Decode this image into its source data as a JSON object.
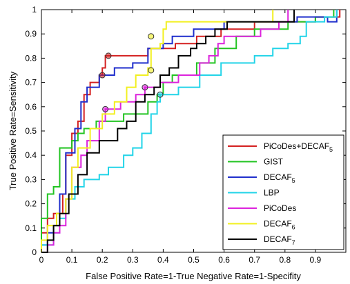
{
  "chart_data": {
    "type": "line",
    "title": "",
    "xlabel": "False Positive Rate=1-True Negative Rate=1-Specifity",
    "ylabel": "True Positive Rate=Sensitivity",
    "xlim": [
      0,
      1
    ],
    "ylim": [
      0,
      1
    ],
    "x_ticks": [
      "0",
      "0.1",
      "0.2",
      "0.3",
      "0.4",
      "0.5",
      "0.6",
      "0.7",
      "0.8",
      "0.9"
    ],
    "y_ticks": [
      "0",
      "0.1",
      "0.2",
      "0.3",
      "0.4",
      "0.5",
      "0.6",
      "0.7",
      "0.8",
      "0.9",
      "1"
    ],
    "x_tick_values": [
      0,
      0.1,
      0.2,
      0.3,
      0.4,
      0.5,
      0.6,
      0.7,
      0.8,
      0.9
    ],
    "y_tick_values": [
      0,
      0.1,
      0.2,
      0.3,
      0.4,
      0.5,
      0.6,
      0.7,
      0.8,
      0.9,
      1
    ],
    "grid": false,
    "legend_position": "bottom-right",
    "series": [
      {
        "name": "PiCoDes+DECAF",
        "name_sub": "5",
        "color": "#d42020",
        "points": [
          [
            0,
            0
          ],
          [
            0,
            0.08
          ],
          [
            0.02,
            0.08
          ],
          [
            0.02,
            0.14
          ],
          [
            0.04,
            0.14
          ],
          [
            0.04,
            0.16
          ],
          [
            0.07,
            0.16
          ],
          [
            0.07,
            0.24
          ],
          [
            0.08,
            0.24
          ],
          [
            0.08,
            0.4
          ],
          [
            0.1,
            0.4
          ],
          [
            0.1,
            0.49
          ],
          [
            0.12,
            0.49
          ],
          [
            0.12,
            0.54
          ],
          [
            0.14,
            0.54
          ],
          [
            0.14,
            0.65
          ],
          [
            0.16,
            0.65
          ],
          [
            0.16,
            0.7
          ],
          [
            0.19,
            0.7
          ],
          [
            0.19,
            0.73
          ],
          [
            0.2,
            0.73
          ],
          [
            0.2,
            0.76
          ],
          [
            0.21,
            0.76
          ],
          [
            0.21,
            0.81
          ],
          [
            0.35,
            0.81
          ],
          [
            0.35,
            0.84
          ],
          [
            0.44,
            0.84
          ],
          [
            0.44,
            0.86
          ],
          [
            0.51,
            0.86
          ],
          [
            0.51,
            0.89
          ],
          [
            0.59,
            0.89
          ],
          [
            0.59,
            0.92
          ],
          [
            0.7,
            0.92
          ],
          [
            0.7,
            0.95
          ],
          [
            0.9,
            0.95
          ],
          [
            0.9,
            0.97
          ],
          [
            0.98,
            0.97
          ],
          [
            0.98,
            1
          ]
        ],
        "markers": [
          [
            0.2,
            0.73
          ],
          [
            0.22,
            0.81
          ]
        ]
      },
      {
        "name": "GIST",
        "color": "#22c422",
        "points": [
          [
            0,
            0
          ],
          [
            0,
            0.14
          ],
          [
            0.02,
            0.14
          ],
          [
            0.02,
            0.24
          ],
          [
            0.04,
            0.24
          ],
          [
            0.04,
            0.27
          ],
          [
            0.06,
            0.27
          ],
          [
            0.06,
            0.43
          ],
          [
            0.1,
            0.43
          ],
          [
            0.1,
            0.46
          ],
          [
            0.12,
            0.46
          ],
          [
            0.12,
            0.49
          ],
          [
            0.14,
            0.49
          ],
          [
            0.14,
            0.51
          ],
          [
            0.18,
            0.51
          ],
          [
            0.18,
            0.54
          ],
          [
            0.27,
            0.54
          ],
          [
            0.27,
            0.57
          ],
          [
            0.35,
            0.57
          ],
          [
            0.35,
            0.62
          ],
          [
            0.38,
            0.62
          ],
          [
            0.38,
            0.65
          ],
          [
            0.4,
            0.65
          ],
          [
            0.4,
            0.7
          ],
          [
            0.43,
            0.7
          ],
          [
            0.43,
            0.73
          ],
          [
            0.51,
            0.73
          ],
          [
            0.51,
            0.78
          ],
          [
            0.57,
            0.78
          ],
          [
            0.57,
            0.84
          ],
          [
            0.64,
            0.84
          ],
          [
            0.64,
            0.89
          ],
          [
            0.7,
            0.89
          ],
          [
            0.7,
            0.92
          ],
          [
            0.81,
            0.92
          ],
          [
            0.81,
            0.95
          ],
          [
            0.9,
            0.95
          ],
          [
            0.9,
            0.97
          ],
          [
            0.96,
            0.97
          ],
          [
            0.96,
            1
          ]
        ],
        "markers": []
      },
      {
        "name": "DECAF",
        "name_sub": "5",
        "color": "#1f2ecc",
        "points": [
          [
            0,
            0
          ],
          [
            0,
            0.03
          ],
          [
            0.02,
            0.03
          ],
          [
            0.02,
            0.08
          ],
          [
            0.04,
            0.08
          ],
          [
            0.04,
            0.11
          ],
          [
            0.06,
            0.11
          ],
          [
            0.06,
            0.24
          ],
          [
            0.08,
            0.24
          ],
          [
            0.08,
            0.41
          ],
          [
            0.11,
            0.41
          ],
          [
            0.11,
            0.51
          ],
          [
            0.13,
            0.51
          ],
          [
            0.13,
            0.62
          ],
          [
            0.15,
            0.62
          ],
          [
            0.15,
            0.68
          ],
          [
            0.19,
            0.68
          ],
          [
            0.19,
            0.73
          ],
          [
            0.24,
            0.73
          ],
          [
            0.24,
            0.76
          ],
          [
            0.3,
            0.76
          ],
          [
            0.3,
            0.78
          ],
          [
            0.35,
            0.78
          ],
          [
            0.35,
            0.84
          ],
          [
            0.4,
            0.84
          ],
          [
            0.4,
            0.86
          ],
          [
            0.43,
            0.86
          ],
          [
            0.43,
            0.89
          ],
          [
            0.5,
            0.89
          ],
          [
            0.5,
            0.92
          ],
          [
            0.6,
            0.92
          ],
          [
            0.6,
            0.95
          ],
          [
            0.84,
            0.95
          ],
          [
            0.84,
            0.97
          ],
          [
            0.94,
            0.97
          ],
          [
            0.94,
            0.95
          ],
          [
            0.97,
            0.95
          ],
          [
            0.97,
            1
          ]
        ],
        "markers": []
      },
      {
        "name": "LBP",
        "color": "#22d4e8",
        "points": [
          [
            0,
            0
          ],
          [
            0,
            0.03
          ],
          [
            0.04,
            0.03
          ],
          [
            0.04,
            0.08
          ],
          [
            0.06,
            0.08
          ],
          [
            0.06,
            0.14
          ],
          [
            0.08,
            0.14
          ],
          [
            0.08,
            0.22
          ],
          [
            0.11,
            0.22
          ],
          [
            0.11,
            0.27
          ],
          [
            0.14,
            0.27
          ],
          [
            0.14,
            0.3
          ],
          [
            0.19,
            0.3
          ],
          [
            0.19,
            0.32
          ],
          [
            0.22,
            0.32
          ],
          [
            0.22,
            0.35
          ],
          [
            0.27,
            0.35
          ],
          [
            0.27,
            0.4
          ],
          [
            0.3,
            0.4
          ],
          [
            0.3,
            0.43
          ],
          [
            0.33,
            0.43
          ],
          [
            0.33,
            0.49
          ],
          [
            0.36,
            0.49
          ],
          [
            0.36,
            0.57
          ],
          [
            0.38,
            0.57
          ],
          [
            0.38,
            0.62
          ],
          [
            0.39,
            0.62
          ],
          [
            0.39,
            0.65
          ],
          [
            0.45,
            0.65
          ],
          [
            0.45,
            0.68
          ],
          [
            0.52,
            0.68
          ],
          [
            0.52,
            0.73
          ],
          [
            0.59,
            0.73
          ],
          [
            0.59,
            0.78
          ],
          [
            0.7,
            0.78
          ],
          [
            0.7,
            0.81
          ],
          [
            0.76,
            0.81
          ],
          [
            0.76,
            0.84
          ],
          [
            0.81,
            0.84
          ],
          [
            0.81,
            0.86
          ],
          [
            0.85,
            0.86
          ],
          [
            0.85,
            0.89
          ],
          [
            0.87,
            0.89
          ],
          [
            0.87,
            0.95
          ],
          [
            0.93,
            0.95
          ],
          [
            0.93,
            0.97
          ],
          [
            0.97,
            0.97
          ],
          [
            0.97,
            1
          ]
        ],
        "markers": [
          [
            0.39,
            0.65
          ]
        ]
      },
      {
        "name": "PiCoDes",
        "color": "#dc22dc",
        "points": [
          [
            0,
            0
          ],
          [
            0.02,
            0
          ],
          [
            0.02,
            0.03
          ],
          [
            0.04,
            0.03
          ],
          [
            0.04,
            0.08
          ],
          [
            0.06,
            0.08
          ],
          [
            0.06,
            0.11
          ],
          [
            0.08,
            0.11
          ],
          [
            0.08,
            0.22
          ],
          [
            0.1,
            0.22
          ],
          [
            0.1,
            0.35
          ],
          [
            0.13,
            0.35
          ],
          [
            0.13,
            0.4
          ],
          [
            0.15,
            0.4
          ],
          [
            0.15,
            0.46
          ],
          [
            0.19,
            0.46
          ],
          [
            0.19,
            0.54
          ],
          [
            0.21,
            0.54
          ],
          [
            0.21,
            0.59
          ],
          [
            0.26,
            0.59
          ],
          [
            0.26,
            0.62
          ],
          [
            0.31,
            0.62
          ],
          [
            0.31,
            0.65
          ],
          [
            0.34,
            0.65
          ],
          [
            0.34,
            0.68
          ],
          [
            0.39,
            0.68
          ],
          [
            0.39,
            0.7
          ],
          [
            0.45,
            0.7
          ],
          [
            0.45,
            0.73
          ],
          [
            0.52,
            0.73
          ],
          [
            0.52,
            0.78
          ],
          [
            0.55,
            0.78
          ],
          [
            0.55,
            0.81
          ],
          [
            0.58,
            0.81
          ],
          [
            0.58,
            0.86
          ],
          [
            0.6,
            0.86
          ],
          [
            0.6,
            0.89
          ],
          [
            0.72,
            0.89
          ],
          [
            0.72,
            0.92
          ],
          [
            0.78,
            0.92
          ],
          [
            0.78,
            0.95
          ],
          [
            0.81,
            0.95
          ],
          [
            0.81,
            1
          ]
        ],
        "markers": [
          [
            0.21,
            0.59
          ],
          [
            0.34,
            0.68
          ]
        ]
      },
      {
        "name": "DECAF",
        "name_sub": "6",
        "color": "#f2f020",
        "points": [
          [
            0,
            0
          ],
          [
            0,
            0.05
          ],
          [
            0.02,
            0.05
          ],
          [
            0.02,
            0.11
          ],
          [
            0.05,
            0.11
          ],
          [
            0.05,
            0.16
          ],
          [
            0.08,
            0.16
          ],
          [
            0.08,
            0.22
          ],
          [
            0.1,
            0.22
          ],
          [
            0.1,
            0.35
          ],
          [
            0.12,
            0.35
          ],
          [
            0.12,
            0.43
          ],
          [
            0.16,
            0.43
          ],
          [
            0.16,
            0.51
          ],
          [
            0.2,
            0.51
          ],
          [
            0.2,
            0.57
          ],
          [
            0.24,
            0.57
          ],
          [
            0.24,
            0.62
          ],
          [
            0.28,
            0.62
          ],
          [
            0.28,
            0.68
          ],
          [
            0.31,
            0.68
          ],
          [
            0.31,
            0.73
          ],
          [
            0.35,
            0.73
          ],
          [
            0.35,
            0.76
          ],
          [
            0.36,
            0.76
          ],
          [
            0.36,
            0.84
          ],
          [
            0.39,
            0.84
          ],
          [
            0.39,
            0.86
          ],
          [
            0.4,
            0.86
          ],
          [
            0.4,
            0.92
          ],
          [
            0.41,
            0.92
          ],
          [
            0.41,
            0.95
          ],
          [
            0.76,
            0.95
          ],
          [
            0.76,
            1
          ]
        ],
        "markers": [
          [
            0.36,
            0.89
          ],
          [
            0.36,
            0.75
          ]
        ]
      },
      {
        "name": "DECAF",
        "name_sub": "7",
        "color": "#000000",
        "points": [
          [
            0,
            0
          ],
          [
            0.02,
            0
          ],
          [
            0.02,
            0.05
          ],
          [
            0.04,
            0.05
          ],
          [
            0.04,
            0.11
          ],
          [
            0.06,
            0.11
          ],
          [
            0.06,
            0.16
          ],
          [
            0.09,
            0.16
          ],
          [
            0.09,
            0.24
          ],
          [
            0.12,
            0.24
          ],
          [
            0.12,
            0.32
          ],
          [
            0.15,
            0.32
          ],
          [
            0.15,
            0.41
          ],
          [
            0.19,
            0.41
          ],
          [
            0.19,
            0.46
          ],
          [
            0.25,
            0.46
          ],
          [
            0.25,
            0.51
          ],
          [
            0.28,
            0.51
          ],
          [
            0.28,
            0.54
          ],
          [
            0.31,
            0.54
          ],
          [
            0.31,
            0.62
          ],
          [
            0.34,
            0.62
          ],
          [
            0.34,
            0.65
          ],
          [
            0.37,
            0.65
          ],
          [
            0.37,
            0.68
          ],
          [
            0.39,
            0.68
          ],
          [
            0.39,
            0.73
          ],
          [
            0.42,
            0.73
          ],
          [
            0.42,
            0.76
          ],
          [
            0.45,
            0.76
          ],
          [
            0.45,
            0.81
          ],
          [
            0.49,
            0.81
          ],
          [
            0.49,
            0.84
          ],
          [
            0.51,
            0.84
          ],
          [
            0.51,
            0.86
          ],
          [
            0.54,
            0.86
          ],
          [
            0.54,
            0.89
          ],
          [
            0.57,
            0.89
          ],
          [
            0.57,
            0.92
          ],
          [
            0.61,
            0.92
          ],
          [
            0.61,
            0.95
          ],
          [
            0.83,
            0.95
          ],
          [
            0.83,
            1
          ]
        ],
        "markers": []
      }
    ]
  }
}
